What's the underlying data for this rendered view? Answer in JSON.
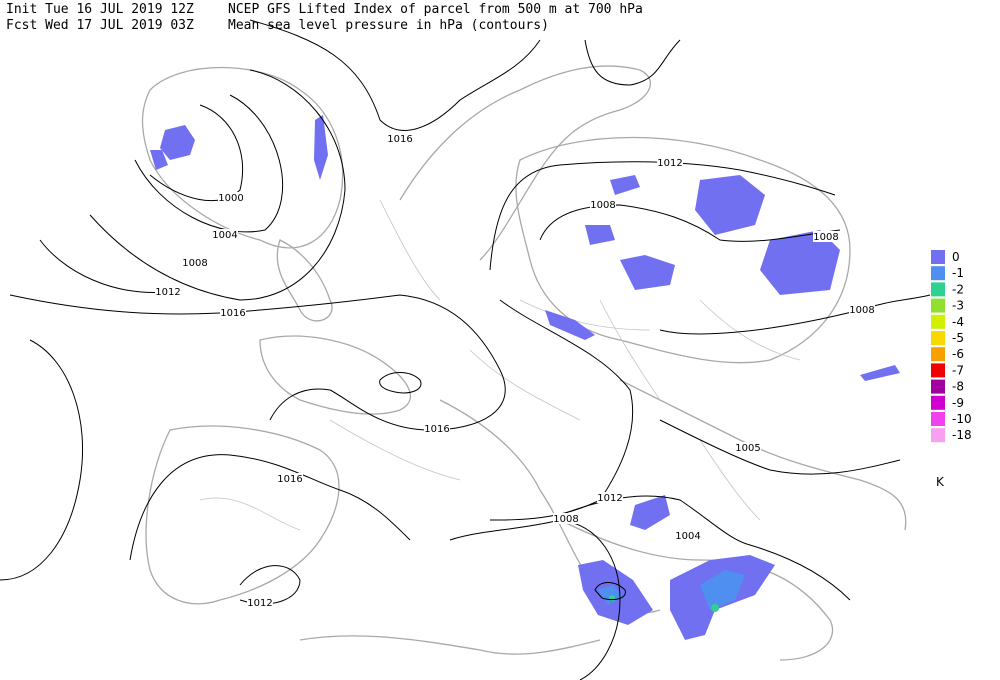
{
  "header": {
    "init": "Init  Tue 16 JUL 2019 12Z",
    "fcst": "Fcst Wed 17 JUL 2019 03Z",
    "title": "NCEP GFS Lifted Index of parcel from 500 m at 700 hPa",
    "subtitle": "Mean sea level pressure in hPa (contours)"
  },
  "contour_labels": [
    "1016",
    "1012",
    "1008",
    "1008",
    "1000",
    "1004",
    "1008",
    "1012",
    "1016",
    "1008",
    "1016",
    "1016",
    "1012",
    "1005",
    "1012",
    "1008",
    "1004"
  ],
  "legend": {
    "items": [
      {
        "label": "0",
        "color": "#7070f0"
      },
      {
        "label": "-1",
        "color": "#4f8ff0"
      },
      {
        "label": "-2",
        "color": "#30d090"
      },
      {
        "label": "-3",
        "color": "#90e030"
      },
      {
        "label": "-4",
        "color": "#d0f000"
      },
      {
        "label": "-5",
        "color": "#f8d800"
      },
      {
        "label": "-6",
        "color": "#f8a000"
      },
      {
        "label": "-7",
        "color": "#f00000"
      },
      {
        "label": "-8",
        "color": "#a000a0"
      },
      {
        "label": "-9",
        "color": "#d000d0"
      },
      {
        "label": "-10",
        "color": "#f040f0"
      },
      {
        "label": "-18",
        "color": "#f8a0f0"
      }
    ],
    "unit": "K"
  }
}
